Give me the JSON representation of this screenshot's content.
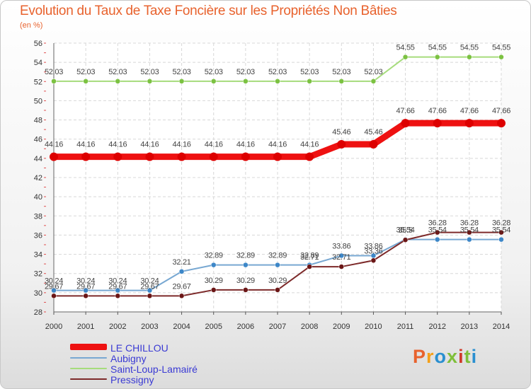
{
  "page": {
    "title": "Evolution du Taux de Taxe Foncière sur les Propriétés Non Bâties",
    "unit": "(en %)"
  },
  "brand": {
    "logo_text": "Proxiti",
    "logo_colors": [
      "#e8622d",
      "#f4a019",
      "#2a8fd0",
      "#7fbf3a",
      "#d03a2a",
      "#7fbf3a",
      "#2a8fd0"
    ]
  },
  "chart_data": {
    "type": "line",
    "title": "Evolution du Taux de Taxe Foncière sur les Propriétés Non Bâties",
    "ylabel": "(en %)",
    "xlabel": "",
    "x": [
      "2000",
      "2001",
      "2002",
      "2003",
      "2004",
      "2005",
      "2006",
      "2007",
      "2008",
      "2009",
      "2010",
      "2011",
      "2012",
      "2013",
      "2014"
    ],
    "ylim": [
      28,
      56
    ],
    "yticks": [
      "28",
      "30",
      "32",
      "34",
      "36",
      "38",
      "40",
      "42",
      "44",
      "46",
      "48",
      "50",
      "52",
      "54",
      "56"
    ],
    "series": [
      {
        "name": "LE CHILLOU",
        "color": "#ee1111",
        "marker_color": "#dd0000",
        "values": [
          44.16,
          44.16,
          44.16,
          44.16,
          44.16,
          44.16,
          44.16,
          44.16,
          44.16,
          45.46,
          45.46,
          47.66,
          47.66,
          47.66,
          47.66
        ],
        "labels": [
          "44.16",
          "44.16",
          "44.16",
          "44.16",
          "44.16",
          "44.16",
          "44.16",
          "44.16",
          "44.16",
          "45.46",
          "45.46",
          "47.66",
          "47.66",
          "47.66",
          "47.66"
        ]
      },
      {
        "name": "Aubigny",
        "color": "#78a8d2",
        "marker_color": "#3d87c8",
        "values": [
          30.24,
          30.24,
          30.24,
          30.24,
          32.21,
          32.89,
          32.89,
          32.89,
          32.89,
          33.86,
          33.86,
          35.54,
          35.54,
          35.54,
          35.54
        ],
        "labels": [
          "30.24",
          "30.24",
          "30.24",
          "30.24",
          "32.21",
          "32.89",
          "32.89",
          "32.89",
          "32.89",
          "33.86",
          "33.86",
          "35.54",
          "35.54",
          "35.54",
          "35.54"
        ]
      },
      {
        "name": "Saint-Loup-Lamairé",
        "color": "#a6dc7c",
        "marker_color": "#7cc242",
        "values": [
          52.03,
          52.03,
          52.03,
          52.03,
          52.03,
          52.03,
          52.03,
          52.03,
          52.03,
          52.03,
          52.03,
          54.55,
          54.55,
          54.55,
          54.55
        ],
        "labels": [
          "52.03",
          "52.03",
          "52.03",
          "52.03",
          "52.03",
          "52.03",
          "52.03",
          "52.03",
          "52.03",
          "52.03",
          "52.03",
          "54.55",
          "54.55",
          "54.55",
          "54.55"
        ]
      },
      {
        "name": "Pressigny",
        "color": "#7d2a2a",
        "marker_color": "#6b1616",
        "values": [
          29.67,
          29.67,
          29.67,
          29.67,
          29.67,
          30.29,
          30.29,
          30.29,
          32.71,
          32.71,
          33.36,
          35.5,
          36.28,
          36.28,
          36.28
        ],
        "labels": [
          "29.67",
          "29.67",
          "29.67",
          "29.67",
          "29.67",
          "30.29",
          "30.29",
          "30.29",
          "32.71",
          "32.71",
          "33.36",
          "35.5",
          "36.28",
          "36.28",
          "36.28"
        ]
      }
    ],
    "legend_position": "bottom-left",
    "grid": true
  }
}
